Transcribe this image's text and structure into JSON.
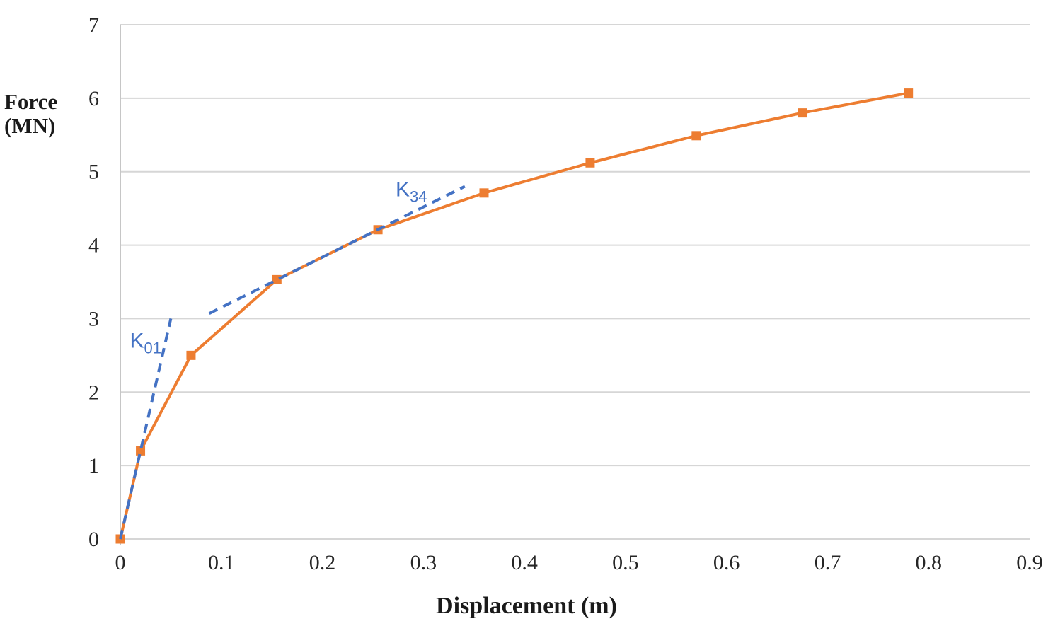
{
  "figure": {
    "background": "#ffffff"
  },
  "axes": {
    "xlabel": "Displacement (m)",
    "ylabel": "Force (MN)",
    "ylabel_lines": [
      "Force",
      "(MN)"
    ]
  },
  "chart_data": {
    "type": "line",
    "title": "",
    "xlabel": "Displacement (m)",
    "ylabel": "Force (MN)",
    "xlim": [
      0,
      0.9
    ],
    "ylim": [
      0,
      7
    ],
    "x_ticks": [
      0,
      0.1,
      0.2,
      0.3,
      0.4,
      0.5,
      0.6,
      0.7,
      0.8,
      0.9
    ],
    "x_tick_labels": [
      "0",
      "0.1",
      "0.2",
      "0.3",
      "0.4",
      "0.5",
      "0.6",
      "0.7",
      "0.8",
      "0.9"
    ],
    "y_ticks": [
      0,
      1,
      2,
      3,
      4,
      5,
      6,
      7
    ],
    "y_tick_labels": [
      "0",
      "1",
      "2",
      "3",
      "4",
      "5",
      "6",
      "7"
    ],
    "grid": {
      "horizontal": true,
      "vertical": false,
      "color": "#d6d6d6",
      "axis_line_color": "#c6c6c6"
    },
    "legend": "none",
    "series": [
      {
        "name": "force-displacement-curve",
        "color": "#ED7D31",
        "style": "solid",
        "marker": "square",
        "marker_size": 13,
        "line_width": 4,
        "x": [
          0,
          0.02,
          0.07,
          0.155,
          0.255,
          0.36,
          0.465,
          0.57,
          0.675,
          0.78
        ],
        "y": [
          0,
          1.2,
          2.5,
          3.53,
          4.21,
          4.71,
          5.12,
          5.49,
          5.8,
          6.07
        ]
      },
      {
        "name": "K01-stiffness-tangent",
        "color": "#4472C4",
        "style": "dashed",
        "marker": "none",
        "line_width": 4,
        "x": [
          0,
          0.05
        ],
        "y": [
          0,
          3.0
        ]
      },
      {
        "name": "K34-stiffness-tangent",
        "color": "#4472C4",
        "style": "dashed",
        "marker": "none",
        "line_width": 4,
        "x": [
          0.088,
          0.341
        ],
        "y": [
          3.07,
          4.8
        ]
      }
    ],
    "annotations": [
      {
        "name": "K01-label",
        "base": "K",
        "subscript": "01",
        "x": 0.025,
        "y": 2.7,
        "color": "#4472C4"
      },
      {
        "name": "K34-label",
        "base": "K",
        "subscript": "34",
        "x": 0.288,
        "y": 4.76,
        "color": "#4472C4"
      }
    ]
  }
}
